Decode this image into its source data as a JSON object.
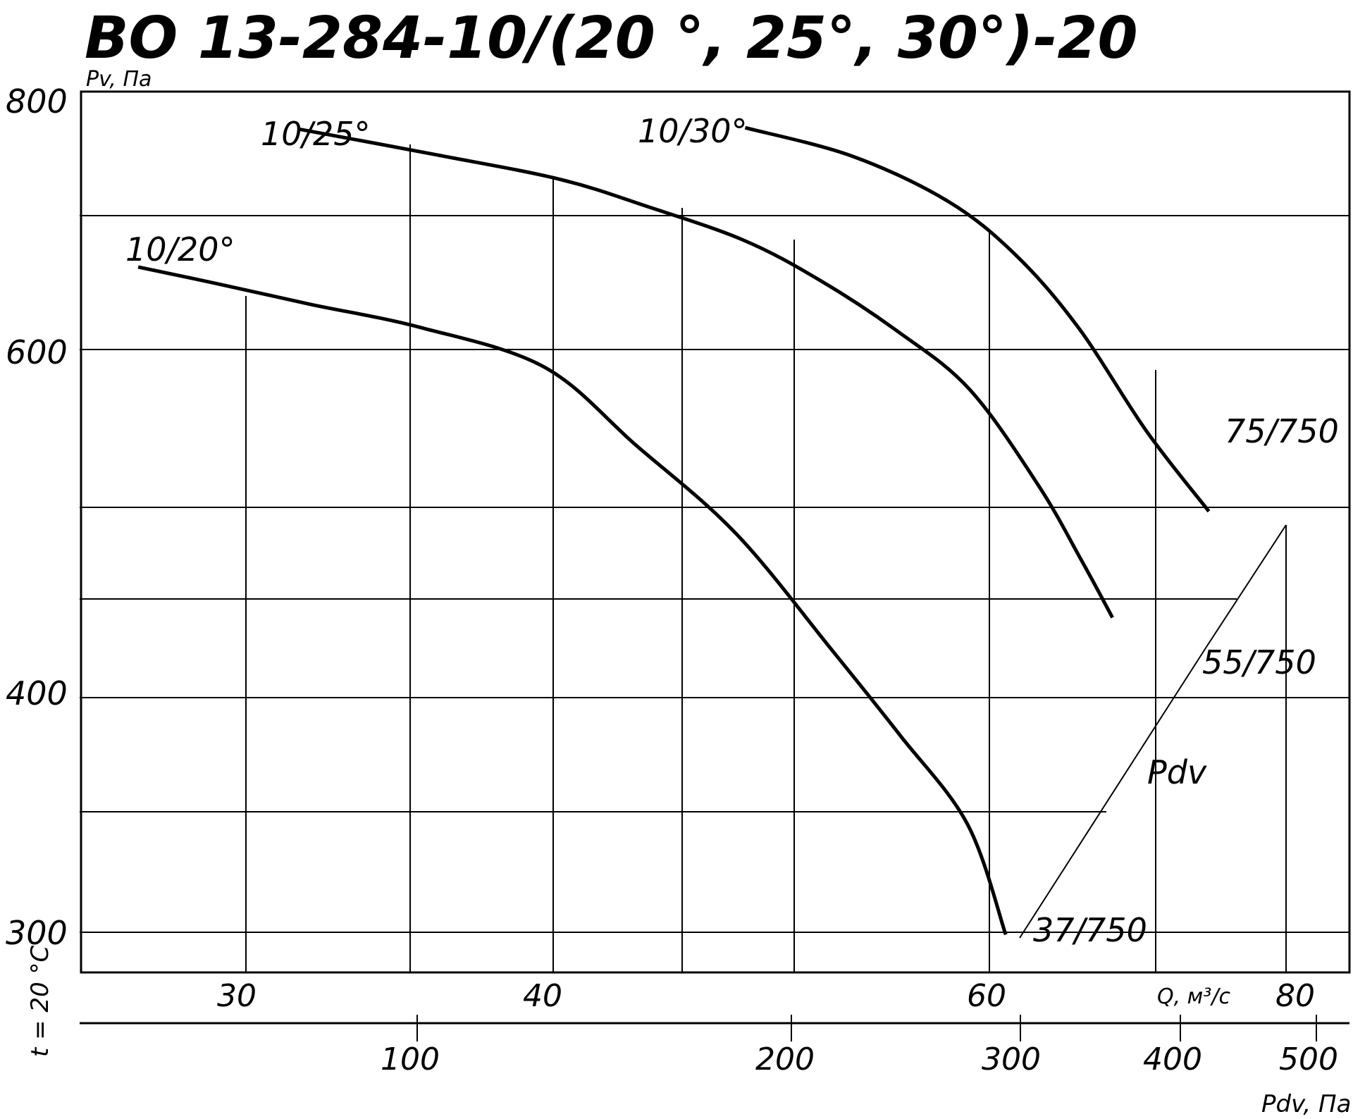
{
  "chart_data": {
    "type": "line",
    "title": "ВО 13-284-10/(20 °, 25°, 30°)-20",
    "ylabel": "Pv, Па",
    "xlabel_q": "Q, м³/с",
    "xlabel_pdv": "Pdv, Па",
    "side_label": "t = 20 °C",
    "y_ticks": [
      "800",
      "600",
      "400",
      "300"
    ],
    "q_ticks": [
      "30",
      "40",
      "60",
      "80"
    ],
    "pdv_ticks": [
      "100",
      "200",
      "300",
      "400",
      "500"
    ],
    "series": [
      {
        "name": "10/20°",
        "points": [
          [
            25.1,
            664
          ],
          [
            28.7,
            651
          ],
          [
            32.1,
            635
          ],
          [
            35.7,
            617
          ],
          [
            39.7,
            590
          ],
          [
            43.8,
            545
          ],
          [
            48.4,
            494
          ],
          [
            52.8,
            427
          ],
          [
            55.9,
            384
          ],
          [
            59.0,
            346
          ],
          [
            61.1,
            299
          ]
        ]
      },
      {
        "name": "10/25°",
        "points": [
          [
            31.7,
            771
          ],
          [
            36.2,
            751
          ],
          [
            40.3,
            732
          ],
          [
            44.3,
            711
          ],
          [
            48.7,
            685
          ],
          [
            52.2,
            654
          ],
          [
            55.8,
            614
          ],
          [
            59.1,
            577
          ],
          [
            63.3,
            522
          ],
          [
            66.2,
            479
          ],
          [
            68.3,
            446
          ]
        ]
      },
      {
        "name": "10/30°",
        "points": [
          [
            48.8,
            772
          ],
          [
            53.7,
            750
          ],
          [
            58.1,
            715
          ],
          [
            61.8,
            673
          ],
          [
            66.0,
            617
          ],
          [
            70.6,
            553
          ],
          [
            74.8,
            507
          ]
        ]
      }
    ],
    "endpoint_labels": [
      "37/750",
      "55/750",
      "75/750"
    ],
    "pdv_line_label": "Pdv",
    "grid": true
  }
}
